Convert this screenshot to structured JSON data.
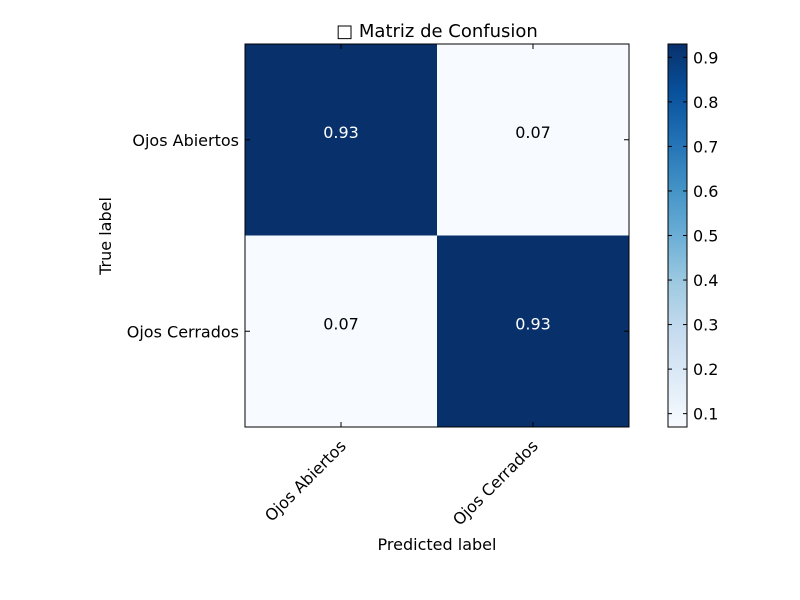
{
  "chart_data": {
    "type": "heatmap",
    "title": "□ Matriz de Confusion",
    "xlabel": "Predicted label",
    "ylabel": "True label",
    "x_categories": [
      "Ojos Abiertos",
      "Ojos Cerrados"
    ],
    "y_categories": [
      "Ojos Abiertos",
      "Ojos Cerrados"
    ],
    "values": [
      [
        0.93,
        0.07
      ],
      [
        0.07,
        0.93
      ]
    ],
    "cell_labels": [
      [
        "0.93",
        "0.07"
      ],
      [
        "0.07",
        "0.93"
      ]
    ],
    "colormap": "Blues",
    "colorbar": {
      "range": [
        0.07,
        0.93
      ],
      "ticks": [
        0.1,
        0.2,
        0.3,
        0.4,
        0.5,
        0.6,
        0.7,
        0.8,
        0.9
      ],
      "tick_labels": [
        "0.1",
        "0.2",
        "0.3",
        "0.4",
        "0.5",
        "0.6",
        "0.7",
        "0.8",
        "0.9"
      ]
    },
    "colors": {
      "high": "#08306b",
      "low": "#f7fbff",
      "text_on_dark": "#ffffff",
      "text_on_light": "#000000"
    }
  }
}
